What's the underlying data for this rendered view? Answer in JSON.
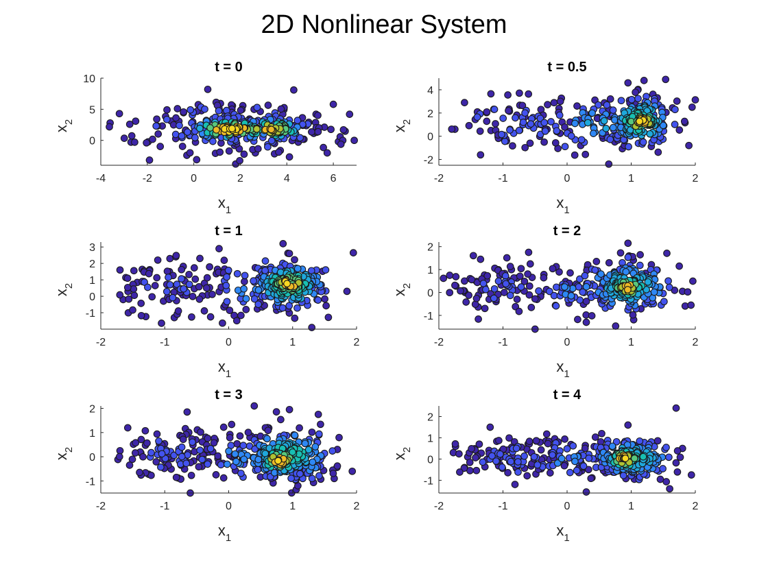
{
  "figure": {
    "title": "2D Nonlinear System"
  },
  "colormap": [
    "#3e26a8",
    "#4353ee",
    "#2f88f5",
    "#1fa8dc",
    "#18bfb3",
    "#59c87c",
    "#b0c233",
    "#eeb927",
    "#f9d723"
  ],
  "chart_data": [
    {
      "type": "scatter",
      "title": "t = 0",
      "xlabel": "x",
      "xlabel_sub": "1",
      "ylabel": "x",
      "ylabel_sub": "2",
      "xlim": [
        -4,
        7
      ],
      "ylim": [
        -4,
        10
      ],
      "xticks": [
        -4,
        -2,
        0,
        2,
        4,
        6
      ],
      "yticks": [
        0,
        5,
        10
      ],
      "clusters": [
        {
          "cx": 1.6,
          "cy": 1.8,
          "sx": 0.9,
          "sy": 0.9,
          "n": 90,
          "density": 0.95
        },
        {
          "cx": 3.3,
          "cy": 1.8,
          "sx": 0.8,
          "sy": 0.9,
          "n": 70,
          "density": 0.8
        },
        {
          "cx": 1.8,
          "cy": 2.0,
          "sx": 2.2,
          "sy": 2.3,
          "n": 210,
          "density": 0.15
        }
      ],
      "points": [
        [
          -3.6,
          2.8
        ],
        [
          -3.2,
          4.3
        ],
        [
          -2.7,
          -0.3
        ],
        [
          6.9,
          0.0
        ],
        [
          6.0,
          5.8
        ],
        [
          0.6,
          8.2
        ],
        [
          4.3,
          8.1
        ],
        [
          1.8,
          -3.8
        ],
        [
          -0.3,
          -2.4
        ],
        [
          6.7,
          4.2
        ]
      ]
    },
    {
      "type": "scatter",
      "title": "t = 0.5",
      "xlabel": "x",
      "xlabel_sub": "1",
      "ylabel": "x",
      "ylabel_sub": "2",
      "xlim": [
        -2,
        2
      ],
      "ylim": [
        -2.5,
        5
      ],
      "xticks": [
        -2,
        -1,
        0,
        1,
        2
      ],
      "yticks": [
        -2,
        0,
        2,
        4
      ],
      "clusters": [
        {
          "cx": 1.15,
          "cy": 1.3,
          "sx": 0.28,
          "sy": 1.1,
          "n": 170,
          "density": 0.55
        },
        {
          "cx": 1.15,
          "cy": 1.2,
          "sx": 0.15,
          "sy": 0.5,
          "n": 40,
          "density": 0.95
        },
        {
          "cx": -0.7,
          "cy": 1.2,
          "sx": 0.55,
          "sy": 1.2,
          "n": 90,
          "density": 0.1
        },
        {
          "cx": 0.5,
          "cy": 1.0,
          "sx": 0.45,
          "sy": 1.2,
          "n": 60,
          "density": 0.3
        }
      ],
      "points": [
        [
          -1.75,
          0.6
        ],
        [
          -1.6,
          2.9
        ],
        [
          1.95,
          2.5
        ],
        [
          1.9,
          -0.8
        ],
        [
          0.65,
          -2.4
        ],
        [
          1.2,
          4.8
        ],
        [
          0.95,
          4.6
        ],
        [
          -1.35,
          -1.6
        ]
      ]
    },
    {
      "type": "scatter",
      "title": "t = 1",
      "xlabel": "x",
      "xlabel_sub": "1",
      "ylabel": "x",
      "ylabel_sub": "2",
      "xlim": [
        -2,
        2
      ],
      "ylim": [
        -2,
        3.3
      ],
      "xticks": [
        -2,
        -1,
        0,
        1,
        2
      ],
      "yticks": [
        -1,
        0,
        1,
        2,
        3
      ],
      "clusters": [
        {
          "cx": 0.95,
          "cy": 0.7,
          "sx": 0.3,
          "sy": 0.75,
          "n": 190,
          "density": 0.6
        },
        {
          "cx": 0.95,
          "cy": 0.8,
          "sx": 0.15,
          "sy": 0.35,
          "n": 45,
          "density": 0.98
        },
        {
          "cx": -0.9,
          "cy": 0.5,
          "sx": 0.45,
          "sy": 0.9,
          "n": 90,
          "density": 0.08
        },
        {
          "cx": 0.3,
          "cy": 0.5,
          "sx": 0.3,
          "sy": 0.8,
          "n": 45,
          "density": 0.25
        }
      ],
      "points": [
        [
          -1.7,
          1.6
        ],
        [
          -1.65,
          -0.2
        ],
        [
          1.95,
          2.65
        ],
        [
          1.85,
          0.3
        ],
        [
          1.3,
          -1.9
        ],
        [
          0.85,
          3.2
        ],
        [
          -0.15,
          2.9
        ],
        [
          -0.85,
          -1.3
        ]
      ]
    },
    {
      "type": "scatter",
      "title": "t = 2",
      "xlabel": "x",
      "xlabel_sub": "1",
      "ylabel": "x",
      "ylabel_sub": "2",
      "xlim": [
        -2,
        2
      ],
      "ylim": [
        -1.6,
        2.2
      ],
      "xticks": [
        -2,
        -1,
        0,
        1,
        2
      ],
      "yticks": [
        -1,
        0,
        1,
        2
      ],
      "clusters": [
        {
          "cx": 0.95,
          "cy": 0.25,
          "sx": 0.38,
          "sy": 0.6,
          "n": 200,
          "density": 0.45
        },
        {
          "cx": 0.95,
          "cy": 0.2,
          "sx": 0.15,
          "sy": 0.3,
          "n": 40,
          "density": 0.85
        },
        {
          "cx": -1.0,
          "cy": 0.2,
          "sx": 0.4,
          "sy": 0.6,
          "n": 90,
          "density": 0.08
        },
        {
          "cx": 0.1,
          "cy": 0.1,
          "sx": 0.3,
          "sy": 0.6,
          "n": 40,
          "density": 0.2
        }
      ],
      "points": [
        [
          -1.6,
          0.5
        ],
        [
          -1.35,
          1.45
        ],
        [
          1.8,
          0.05
        ],
        [
          1.75,
          1.15
        ],
        [
          -0.5,
          -1.6
        ],
        [
          0.95,
          2.15
        ],
        [
          -0.6,
          1.75
        ],
        [
          0.3,
          -1.3
        ]
      ]
    },
    {
      "type": "scatter",
      "title": "t = 3",
      "xlabel": "x",
      "xlabel_sub": "1",
      "ylabel": "x",
      "ylabel_sub": "2",
      "xlim": [
        -2,
        2
      ],
      "ylim": [
        -1.5,
        2.1
      ],
      "xticks": [
        -2,
        -1,
        0,
        1,
        2
      ],
      "yticks": [
        -1,
        0,
        1,
        2
      ],
      "clusters": [
        {
          "cx": 0.9,
          "cy": 0.05,
          "sx": 0.38,
          "sy": 0.55,
          "n": 190,
          "density": 0.5
        },
        {
          "cx": 0.8,
          "cy": -0.15,
          "sx": 0.18,
          "sy": 0.3,
          "n": 45,
          "density": 0.85
        },
        {
          "cx": -0.8,
          "cy": 0.1,
          "sx": 0.5,
          "sy": 0.5,
          "n": 110,
          "density": 0.1
        },
        {
          "cx": 0.2,
          "cy": 0.0,
          "sx": 0.35,
          "sy": 0.5,
          "n": 50,
          "density": 0.25
        }
      ],
      "points": [
        [
          -1.7,
          0.25
        ],
        [
          -1.55,
          -0.35
        ],
        [
          1.7,
          0.3
        ],
        [
          1.65,
          -0.9
        ],
        [
          -0.6,
          -1.5
        ],
        [
          -0.65,
          1.85
        ],
        [
          0.4,
          2.1
        ],
        [
          0.95,
          1.95
        ]
      ]
    },
    {
      "type": "scatter",
      "title": "t = 4",
      "xlabel": "x",
      "xlabel_sub": "1",
      "ylabel": "x",
      "ylabel_sub": "2",
      "xlim": [
        -2,
        2
      ],
      "ylim": [
        -1.6,
        2.5
      ],
      "xticks": [
        -2,
        -1,
        0,
        1,
        2
      ],
      "yticks": [
        -1,
        0,
        1,
        2
      ],
      "clusters": [
        {
          "cx": 1.0,
          "cy": 0.05,
          "sx": 0.35,
          "sy": 0.5,
          "n": 190,
          "density": 0.45
        },
        {
          "cx": 0.9,
          "cy": 0.0,
          "sx": 0.15,
          "sy": 0.28,
          "n": 45,
          "density": 0.9
        },
        {
          "cx": -0.9,
          "cy": 0.05,
          "sx": 0.45,
          "sy": 0.5,
          "n": 100,
          "density": 0.1
        },
        {
          "cx": 0.0,
          "cy": 0.0,
          "sx": 0.35,
          "sy": 0.45,
          "n": 50,
          "density": 0.2
        }
      ],
      "points": [
        [
          -1.6,
          -0.4
        ],
        [
          -1.55,
          0.1
        ],
        [
          1.7,
          2.4
        ],
        [
          1.8,
          0.5
        ],
        [
          0.3,
          -1.55
        ],
        [
          -1.2,
          1.5
        ],
        [
          0.95,
          1.6
        ],
        [
          1.6,
          -1.4
        ]
      ]
    }
  ]
}
